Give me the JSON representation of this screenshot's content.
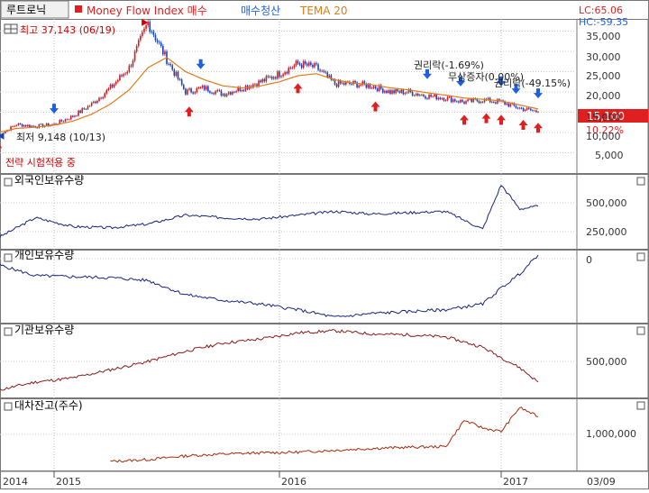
{
  "header": {
    "stock_name": "루트로닉",
    "indicator_label": "Money Flow Index 매수",
    "sell_label": "매수청산",
    "tema_label": "TEMA 20"
  },
  "corner": {
    "lc": "LC:65.06",
    "hc": "HC:-59.35"
  },
  "colors": {
    "price": "#333333",
    "tema": "#e07b1a",
    "buy": "#e02020",
    "sell": "#2060e0",
    "foreign": "#1a237e",
    "individual": "#1a237e",
    "institution": "#8b1a1a",
    "loan": "#a52a0a",
    "current_price_box": "#e02020",
    "grid": "#c8c8c8"
  },
  "panes": {
    "price": {
      "max_label": "최고 37,143 (06/19)",
      "min_label": "최저 9,148 (10/13)",
      "strategy_label": "전략 시험적용 중",
      "ann1": "권리락(-1.69%)",
      "ann2": "무상증자(0.00%)",
      "ann3": "권리락(-49.15%)",
      "current_price": "15,100",
      "current_pct": "10.22%",
      "ticks": [
        "35,000",
        "30,000",
        "25,000",
        "20,000",
        "15,000",
        "10,000",
        "5,000"
      ]
    },
    "foreign": {
      "title": "외국인보유수량",
      "ticks": [
        "500,000",
        "250,000"
      ]
    },
    "individual": {
      "title": "개인보유수량",
      "ticks": [
        "0"
      ]
    },
    "institution": {
      "title": "기관보유수량",
      "ticks": [
        "500,000"
      ]
    },
    "loan": {
      "title": "대차잔고(주수)",
      "ticks": [
        "1,000,000"
      ]
    }
  },
  "xaxis": {
    "labels": [
      "2014",
      "2015",
      "2016",
      "2017"
    ],
    "right_label": "03/09"
  },
  "chart_data": [
    {
      "type": "line",
      "title": "",
      "y_unit": "KRW",
      "ylim": [
        0,
        38000
      ],
      "x": [
        "2014-10",
        "2014-11",
        "2014-12",
        "2015-01",
        "2015-02",
        "2015-03",
        "2015-04",
        "2015-05",
        "2015-06",
        "2015-07",
        "2015-08",
        "2015-09",
        "2015-10",
        "2015-11",
        "2015-12",
        "2016-01",
        "2016-02",
        "2016-03",
        "2016-04",
        "2016-05",
        "2016-06",
        "2016-07",
        "2016-08",
        "2016-09",
        "2016-10",
        "2016-11",
        "2016-12",
        "2017-01",
        "2017-02",
        "2017-03"
      ],
      "series": [
        {
          "name": "",
          "values": [
            9148,
            12000,
            11500,
            12000,
            14000,
            17000,
            21000,
            26000,
            37143,
            28000,
            20000,
            21000,
            19500,
            21000,
            22500,
            24500,
            27000,
            26000,
            22000,
            22000,
            21500,
            20000,
            20000,
            19000,
            18500,
            17500,
            18000,
            17500,
            16000,
            15100
          ]
        },
        {
          "name": "TEMA 20",
          "values": [
            10000,
            11000,
            11300,
            11800,
            12800,
            14500,
            17000,
            20500,
            26000,
            28500,
            25000,
            23000,
            21500,
            21000,
            21500,
            22500,
            24000,
            24500,
            23000,
            22200,
            21800,
            21000,
            20500,
            19800,
            19200,
            18500,
            18200,
            17800,
            16800,
            15800
          ]
        }
      ],
      "annotations": [
        "최고 37,143 (06/19)",
        "최저 9,148 (10/13)",
        "권리락(-1.69%)",
        "무상증자(0.00%)",
        "권리락(-49.15%)"
      ]
    },
    {
      "type": "line",
      "title": "외국인보유수량",
      "x": [
        "2014-10",
        "2014-12",
        "2015-02",
        "2015-04",
        "2015-06",
        "2015-08",
        "2015-10",
        "2015-12",
        "2016-02",
        "2016-04",
        "2016-06",
        "2016-08",
        "2016-10",
        "2016-12",
        "2017-01",
        "2017-02",
        "2017-03"
      ],
      "series": [
        {
          "name": "외국인보유수량",
          "values": [
            220000,
            380000,
            310000,
            300000,
            330000,
            400000,
            380000,
            370000,
            400000,
            430000,
            410000,
            420000,
            430000,
            290000,
            640000,
            450000,
            470000
          ]
        }
      ]
    },
    {
      "type": "line",
      "title": "개인보유수량",
      "x": [
        "2014-10",
        "2014-12",
        "2015-02",
        "2015-04",
        "2015-06",
        "2015-08",
        "2015-10",
        "2015-12",
        "2016-02",
        "2016-04",
        "2016-06",
        "2016-08",
        "2016-10",
        "2016-12",
        "2017-01",
        "2017-02",
        "2017-03"
      ],
      "series": [
        {
          "name": "개인보유수량",
          "values": [
            -300000,
            -420000,
            -430000,
            -440000,
            -470000,
            -620000,
            -680000,
            -720000,
            -780000,
            -860000,
            -820000,
            -800000,
            -780000,
            -720000,
            -550000,
            -400000,
            -200000
          ]
        }
      ]
    },
    {
      "type": "line",
      "title": "기관보유수량",
      "x": [
        "2014-10",
        "2014-12",
        "2015-02",
        "2015-04",
        "2015-06",
        "2015-08",
        "2015-10",
        "2015-12",
        "2016-02",
        "2016-04",
        "2016-06",
        "2016-08",
        "2016-10",
        "2016-12",
        "2017-01",
        "2017-02",
        "2017-03"
      ],
      "series": [
        {
          "name": "기관보유수량",
          "values": [
            100000,
            180000,
            220000,
            300000,
            380000,
            480000,
            560000,
            600000,
            660000,
            680000,
            650000,
            640000,
            620000,
            520000,
            420000,
            320000,
            180000
          ]
        }
      ]
    },
    {
      "type": "line",
      "title": "대차잔고(주수)",
      "x": [
        "2015-04",
        "2015-06",
        "2015-08",
        "2015-10",
        "2015-12",
        "2016-02",
        "2016-04",
        "2016-06",
        "2016-08",
        "2016-10",
        "2016-11",
        "2016-12",
        "2017-01",
        "2017-02",
        "2017-03"
      ],
      "series": [
        {
          "name": "대차잔고(주수)",
          "values": [
            0,
            50000,
            150000,
            200000,
            230000,
            250000,
            300000,
            350000,
            380000,
            400000,
            1100000,
            900000,
            800000,
            1450000,
            1200000
          ]
        }
      ]
    }
  ]
}
